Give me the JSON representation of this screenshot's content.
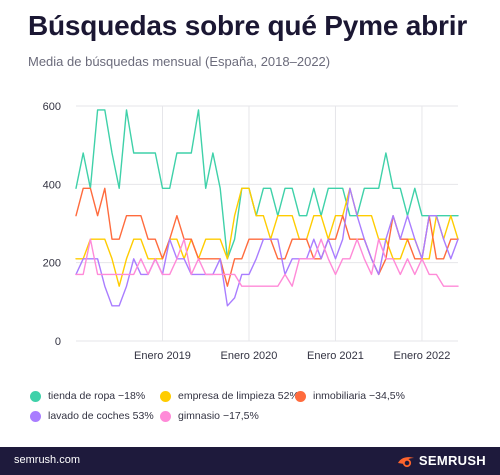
{
  "title": "Búsquedas sobre qué Pyme abrir",
  "subtitle": "Media de búsquedas mensual (España, 2018–2022)",
  "footer": {
    "url": "semrush.com",
    "brand": "SEMRUSH",
    "brand_color": "#ff642d"
  },
  "chart_data": {
    "type": "line",
    "title": "Búsquedas sobre qué Pyme abrir",
    "subtitle": "Media de búsquedas mensual (España, 2018–2022)",
    "x_start": "2018-01",
    "x_tick_labels": [
      "Enero 2019",
      "Enero 2020",
      "Enero 2021",
      "Enero 2022"
    ],
    "y_ticks": [
      0,
      200,
      400,
      600
    ],
    "ylim": [
      0,
      600
    ],
    "grid": true,
    "legend_position": "bottom",
    "series": [
      {
        "name": "tienda de ropa −18%",
        "color": "#3fd1a9",
        "values": [
          390,
          480,
          390,
          590,
          590,
          480,
          390,
          590,
          480,
          480,
          480,
          480,
          390,
          390,
          480,
          480,
          480,
          590,
          390,
          480,
          390,
          210,
          260,
          390,
          390,
          320,
          390,
          390,
          320,
          390,
          390,
          320,
          320,
          390,
          320,
          390,
          390,
          390,
          320,
          320,
          390,
          390,
          390,
          480,
          390,
          390,
          320,
          390,
          320,
          320,
          320,
          320,
          320,
          320
        ]
      },
      {
        "name": "empresa de limpieza 52%",
        "color": "#ffcc00",
        "values": [
          210,
          210,
          260,
          260,
          260,
          210,
          140,
          210,
          260,
          260,
          210,
          210,
          210,
          260,
          260,
          210,
          260,
          210,
          260,
          260,
          260,
          210,
          320,
          390,
          390,
          320,
          320,
          260,
          320,
          320,
          320,
          260,
          260,
          320,
          320,
          260,
          320,
          320,
          390,
          320,
          320,
          320,
          260,
          260,
          210,
          210,
          260,
          260,
          210,
          210,
          320,
          260,
          320,
          260
        ]
      },
      {
        "name": "inmobiliaria −34,5%",
        "color": "#ff6b3d",
        "values": [
          320,
          390,
          390,
          320,
          390,
          260,
          260,
          320,
          320,
          320,
          260,
          260,
          210,
          260,
          320,
          260,
          260,
          210,
          210,
          210,
          210,
          140,
          210,
          210,
          260,
          260,
          260,
          260,
          210,
          210,
          260,
          260,
          260,
          210,
          210,
          260,
          260,
          320,
          260,
          260,
          260,
          210,
          170,
          210,
          320,
          260,
          260,
          210,
          210,
          320,
          210,
          210,
          260,
          260
        ]
      },
      {
        "name": "lavado de coches 53%",
        "color": "#a97dff",
        "values": [
          170,
          210,
          210,
          210,
          140,
          90,
          90,
          140,
          210,
          170,
          170,
          210,
          170,
          260,
          210,
          210,
          170,
          170,
          170,
          170,
          210,
          90,
          110,
          170,
          170,
          210,
          260,
          260,
          260,
          170,
          210,
          210,
          210,
          260,
          210,
          260,
          210,
          260,
          390,
          320,
          260,
          210,
          170,
          260,
          320,
          260,
          320,
          260,
          210,
          320,
          320,
          260,
          210,
          260
        ]
      },
      {
        "name": "gimnasio −17,5%",
        "color": "#ff8ad8",
        "values": [
          170,
          170,
          260,
          170,
          170,
          170,
          170,
          170,
          170,
          210,
          170,
          210,
          170,
          170,
          210,
          260,
          170,
          210,
          170,
          170,
          170,
          170,
          170,
          140,
          140,
          140,
          140,
          140,
          140,
          170,
          140,
          210,
          210,
          210,
          260,
          210,
          170,
          210,
          210,
          260,
          210,
          170,
          260,
          210,
          210,
          170,
          210,
          170,
          210,
          170,
          170,
          140,
          140,
          140
        ]
      }
    ]
  }
}
